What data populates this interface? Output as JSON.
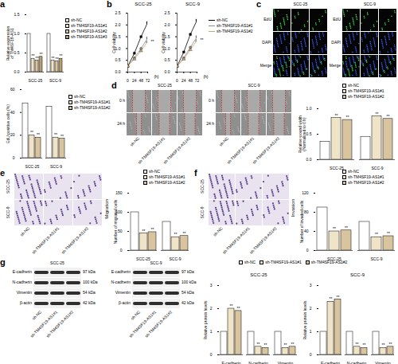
{
  "chart_data": [
    {
      "panel": "a",
      "type": "bar",
      "y_label": "Relative expression\nof TM4SF19-AS1",
      "categories": [
        "SCC-25",
        "SCC-9"
      ],
      "series": [
        {
          "name": "sh-NC",
          "color": "#ffffff",
          "values": [
            1.0,
            1.0
          ]
        },
        {
          "name": "sh-TM4SF19-AS1#1",
          "color": "#f0e4c8",
          "values": [
            0.35,
            0.3
          ],
          "annotations": [
            "**",
            "**"
          ]
        },
        {
          "name": "sh-TM4SF19-AS1#2",
          "color": "#d8c49e",
          "values": [
            0.3,
            0.28
          ],
          "annotations": [
            "**",
            "**"
          ]
        },
        {
          "name": "sh-TM4SF19-AS1#3",
          "color": "#b89c74",
          "values": [
            0.4,
            0.35
          ],
          "annotations": [
            "**",
            "**"
          ]
        }
      ],
      "ylim": [
        0,
        1.5
      ],
      "yticks": [
        {
          "value": 0,
          "label": "0.0"
        },
        {
          "value": 0.5,
          "label": "0.5"
        },
        {
          "value": 1,
          "label": "1.0"
        },
        {
          "value": 1.5,
          "label": "1.5"
        }
      ],
      "legend": "right"
    },
    {
      "panel": "b",
      "type": "line",
      "title": "SCC-25",
      "y_label": "Cell viability",
      "x_label": "(h)",
      "x": [
        0,
        24,
        48,
        72
      ],
      "series": [
        {
          "name": "sh-NC",
          "color": "#000000",
          "marker": "square",
          "values": [
            0.25,
            0.8,
            1.5,
            2.1
          ]
        },
        {
          "name": "sh-TM4SF19-AS1#1",
          "color": "#8c8c8c",
          "marker": "circle",
          "values": [
            0.25,
            0.6,
            1.0,
            1.45
          ]
        },
        {
          "name": "sh-TM4SF19-AS1#2",
          "color": "#c8a878",
          "marker": "triangle",
          "values": [
            0.25,
            0.55,
            0.9,
            1.3
          ],
          "annotations": [
            null,
            null,
            null,
            "**"
          ]
        }
      ],
      "xlim": [
        0,
        72
      ],
      "xticks": [
        0,
        24,
        48,
        72
      ],
      "ylim": [
        0,
        2.5
      ],
      "yticks": [
        {
          "value": 0,
          "label": "0.0"
        },
        {
          "value": 0.5,
          "label": "0.5"
        },
        {
          "value": 1,
          "label": "1.0"
        },
        {
          "value": 1.5,
          "label": "1.5"
        },
        {
          "value": 2,
          "label": "2.0"
        },
        {
          "value": 2.5,
          "label": "2.5"
        }
      ],
      "legend": "right"
    },
    {
      "type": "line",
      "title": "SCC-9",
      "y_label": "Cell viability",
      "x_label": "(h)",
      "x": [
        0,
        24,
        48,
        72
      ],
      "series": [
        {
          "name": "sh-NC",
          "color": "#000000",
          "marker": "square",
          "values": [
            0.25,
            0.85,
            1.6,
            2.2
          ]
        },
        {
          "name": "sh-TM4SF19-AS1#1",
          "color": "#8c8c8c",
          "marker": "circle",
          "values": [
            0.25,
            0.6,
            1.05,
            1.5
          ]
        },
        {
          "name": "sh-TM4SF19-AS1#2",
          "color": "#c8a878",
          "marker": "triangle",
          "values": [
            0.25,
            0.55,
            0.95,
            1.35
          ],
          "annotations": [
            null,
            null,
            null,
            "**"
          ]
        }
      ],
      "xlim": [
        0,
        72
      ],
      "xticks": [
        0,
        24,
        48,
        72
      ],
      "ylim": [
        0,
        2.5
      ],
      "yticks": [
        {
          "value": 0,
          "label": "0.0"
        },
        {
          "value": 0.5,
          "label": "0.5"
        },
        {
          "value": 1,
          "label": "1.0"
        },
        {
          "value": 1.5,
          "label": "1.5"
        },
        {
          "value": 2,
          "label": "2.0"
        },
        {
          "value": 2.5,
          "label": "2.5"
        }
      ]
    },
    {
      "type": "bar",
      "y_label": "EdU positive cells (%)",
      "categories": [
        "SCC-25",
        "SCC-9"
      ],
      "series": [
        {
          "name": "sh-NC",
          "color": "#ffffff",
          "values": [
            48,
            45
          ]
        },
        {
          "name": "sh-TM4SF19-AS1#1",
          "color": "#f0e4c8",
          "values": [
            20,
            18
          ],
          "annotations": [
            "**",
            "**"
          ]
        },
        {
          "name": "sh-TM4SF19-AS1#2",
          "color": "#d8c49e",
          "values": [
            18,
            17
          ],
          "annotations": [
            "**",
            "**"
          ]
        }
      ],
      "ylim": [
        0,
        60
      ],
      "yticks": [
        0,
        20,
        40,
        60
      ],
      "legend": "right"
    },
    {
      "type": "bar",
      "y_label": "Relative wound width\n(Normalized to 0 h)",
      "categories": [
        "SCC-25",
        "SCC-9"
      ],
      "series": [
        {
          "name": "sh-NC",
          "color": "#ffffff",
          "values": [
            0.35,
            0.45
          ]
        },
        {
          "name": "sh-TM4SF19-AS1#1",
          "color": "#f0e4c8",
          "values": [
            0.82,
            0.85
          ],
          "annotations": [
            "**",
            "**"
          ]
        },
        {
          "name": "sh-TM4SF19-AS1#2",
          "color": "#d8c49e",
          "values": [
            0.78,
            0.8
          ],
          "annotations": [
            "**",
            "**"
          ]
        }
      ],
      "ylim": [
        0,
        1
      ],
      "yticks": [
        {
          "value": 0,
          "label": "0.0"
        },
        {
          "value": 0.5,
          "label": "0.5"
        },
        {
          "value": 1,
          "label": "1.0"
        }
      ],
      "legend": "top"
    },
    {
      "type": "bar",
      "title": "Migration",
      "y_label": "Number of migrated cells",
      "categories": [
        "SCC-25",
        "SCC-9"
      ],
      "series": [
        {
          "name": "sh-NC",
          "color": "#ffffff",
          "values": [
            100,
            75
          ]
        },
        {
          "name": "sh-TM4SF19-AS1#1",
          "color": "#f0e4c8",
          "values": [
            45,
            35
          ],
          "annotations": [
            "**",
            "**"
          ]
        },
        {
          "name": "sh-TM4SF19-AS1#2",
          "color": "#d8c49e",
          "values": [
            48,
            38
          ],
          "annotations": [
            "**",
            "**"
          ]
        }
      ],
      "ylim": [
        0,
        150
      ],
      "yticks": [
        0,
        50,
        100,
        150
      ],
      "legend": "top"
    },
    {
      "type": "bar",
      "title": "Invasion",
      "y_label": "Number of invaded cells",
      "categories": [
        "SCC-25",
        "SCC-9"
      ],
      "series": [
        {
          "name": "sh-NC",
          "color": "#ffffff",
          "values": [
            90,
            60
          ]
        },
        {
          "name": "sh-TM4SF19-AS1#1",
          "color": "#f0e4c8",
          "values": [
            40,
            28
          ],
          "annotations": [
            "**",
            "**"
          ]
        },
        {
          "name": "sh-TM4SF19-AS1#2",
          "color": "#d8c49e",
          "values": [
            42,
            30
          ],
          "annotations": [
            "**",
            "**"
          ]
        }
      ],
      "ylim": [
        0,
        120
      ],
      "yticks": [
        0,
        40,
        80,
        120
      ],
      "legend": "top"
    },
    {
      "type": "bar",
      "title": "SCC-25",
      "y_label": "Relative protein levels",
      "categories": [
        "E-cadherin",
        "N-cadherin",
        "Vimentin"
      ],
      "series": [
        {
          "name": "sh-NC",
          "color": "#ffffff",
          "values": [
            1,
            1,
            1
          ]
        },
        {
          "name": "sh-TM4SF19-AS1#1",
          "color": "#f0e4c8",
          "values": [
            2.0,
            0.35,
            0.3
          ],
          "annotations": [
            "**",
            "**",
            "**"
          ]
        },
        {
          "name": "sh-TM4SF19-AS1#2",
          "color": "#d8c49e",
          "values": [
            1.9,
            0.3,
            0.35
          ],
          "annotations": [
            "**",
            "**",
            "**"
          ]
        }
      ],
      "ylim": [
        0,
        3
      ],
      "yticks": [
        0,
        1,
        2,
        3
      ],
      "legend": "top"
    },
    {
      "type": "bar",
      "title": "SCC-9",
      "y_label": "Relative protein levels",
      "categories": [
        "E-cadherin",
        "N-cadherin",
        "Vimentin"
      ],
      "series": [
        {
          "name": "sh-NC",
          "color": "#ffffff",
          "values": [
            1,
            1,
            1
          ]
        },
        {
          "name": "sh-TM4SF19-AS1#1",
          "color": "#f0e4c8",
          "values": [
            2.3,
            0.35,
            0.3
          ],
          "annotations": [
            "**",
            "**",
            "**"
          ]
        },
        {
          "name": "sh-TM4SF19-AS1#2",
          "color": "#d8c49e",
          "values": [
            2.4,
            0.3,
            0.35
          ],
          "annotations": [
            "**",
            "**",
            "**"
          ]
        }
      ],
      "ylim": [
        0,
        3
      ],
      "yticks": [
        0,
        1,
        2,
        3
      ]
    }
  ],
  "images": [
    {
      "panel": "c",
      "groups": [
        "SCC-25",
        "SCC-9"
      ],
      "rows": [
        "EdU",
        "DAPI",
        "Merge"
      ]
    },
    {
      "panel": "d",
      "groups": [
        "SCC-25",
        "SCC-9"
      ],
      "rows": [
        "0 h",
        "24 h"
      ],
      "columns": [
        "sh-NC",
        "sh-TM4SF19-AS1#1",
        "sh-TM4SF19-AS1#2"
      ]
    },
    {
      "panel": "e",
      "rows": [
        "SCC-25",
        "SCC-9"
      ],
      "columns": [
        "sh-NC",
        "sh-TM4SF19-AS1#1",
        "sh-TM4SF19-AS1#2"
      ]
    },
    {
      "panel": "f",
      "rows": [
        "SCC-25",
        "SCC-9"
      ],
      "columns": [
        "sh-NC",
        "sh-TM4SF19-AS1#1",
        "sh-TM4SF19-AS1#2"
      ]
    },
    {
      "panel": "g",
      "groups": [
        "SCC-25",
        "SCC-9"
      ],
      "bands": [
        {
          "name": "E-cadherin",
          "size": "97 kDa"
        },
        {
          "name": "N-cadherin",
          "size": "100 kDa"
        },
        {
          "name": "Vimentin",
          "size": "54 kDa"
        },
        {
          "name": "β-actin",
          "size": "42 kDa"
        }
      ],
      "columns": [
        "sh-NC",
        "sh-TM4SF19-AS1#1",
        "sh-TM4SF19-AS1#2"
      ]
    }
  ]
}
